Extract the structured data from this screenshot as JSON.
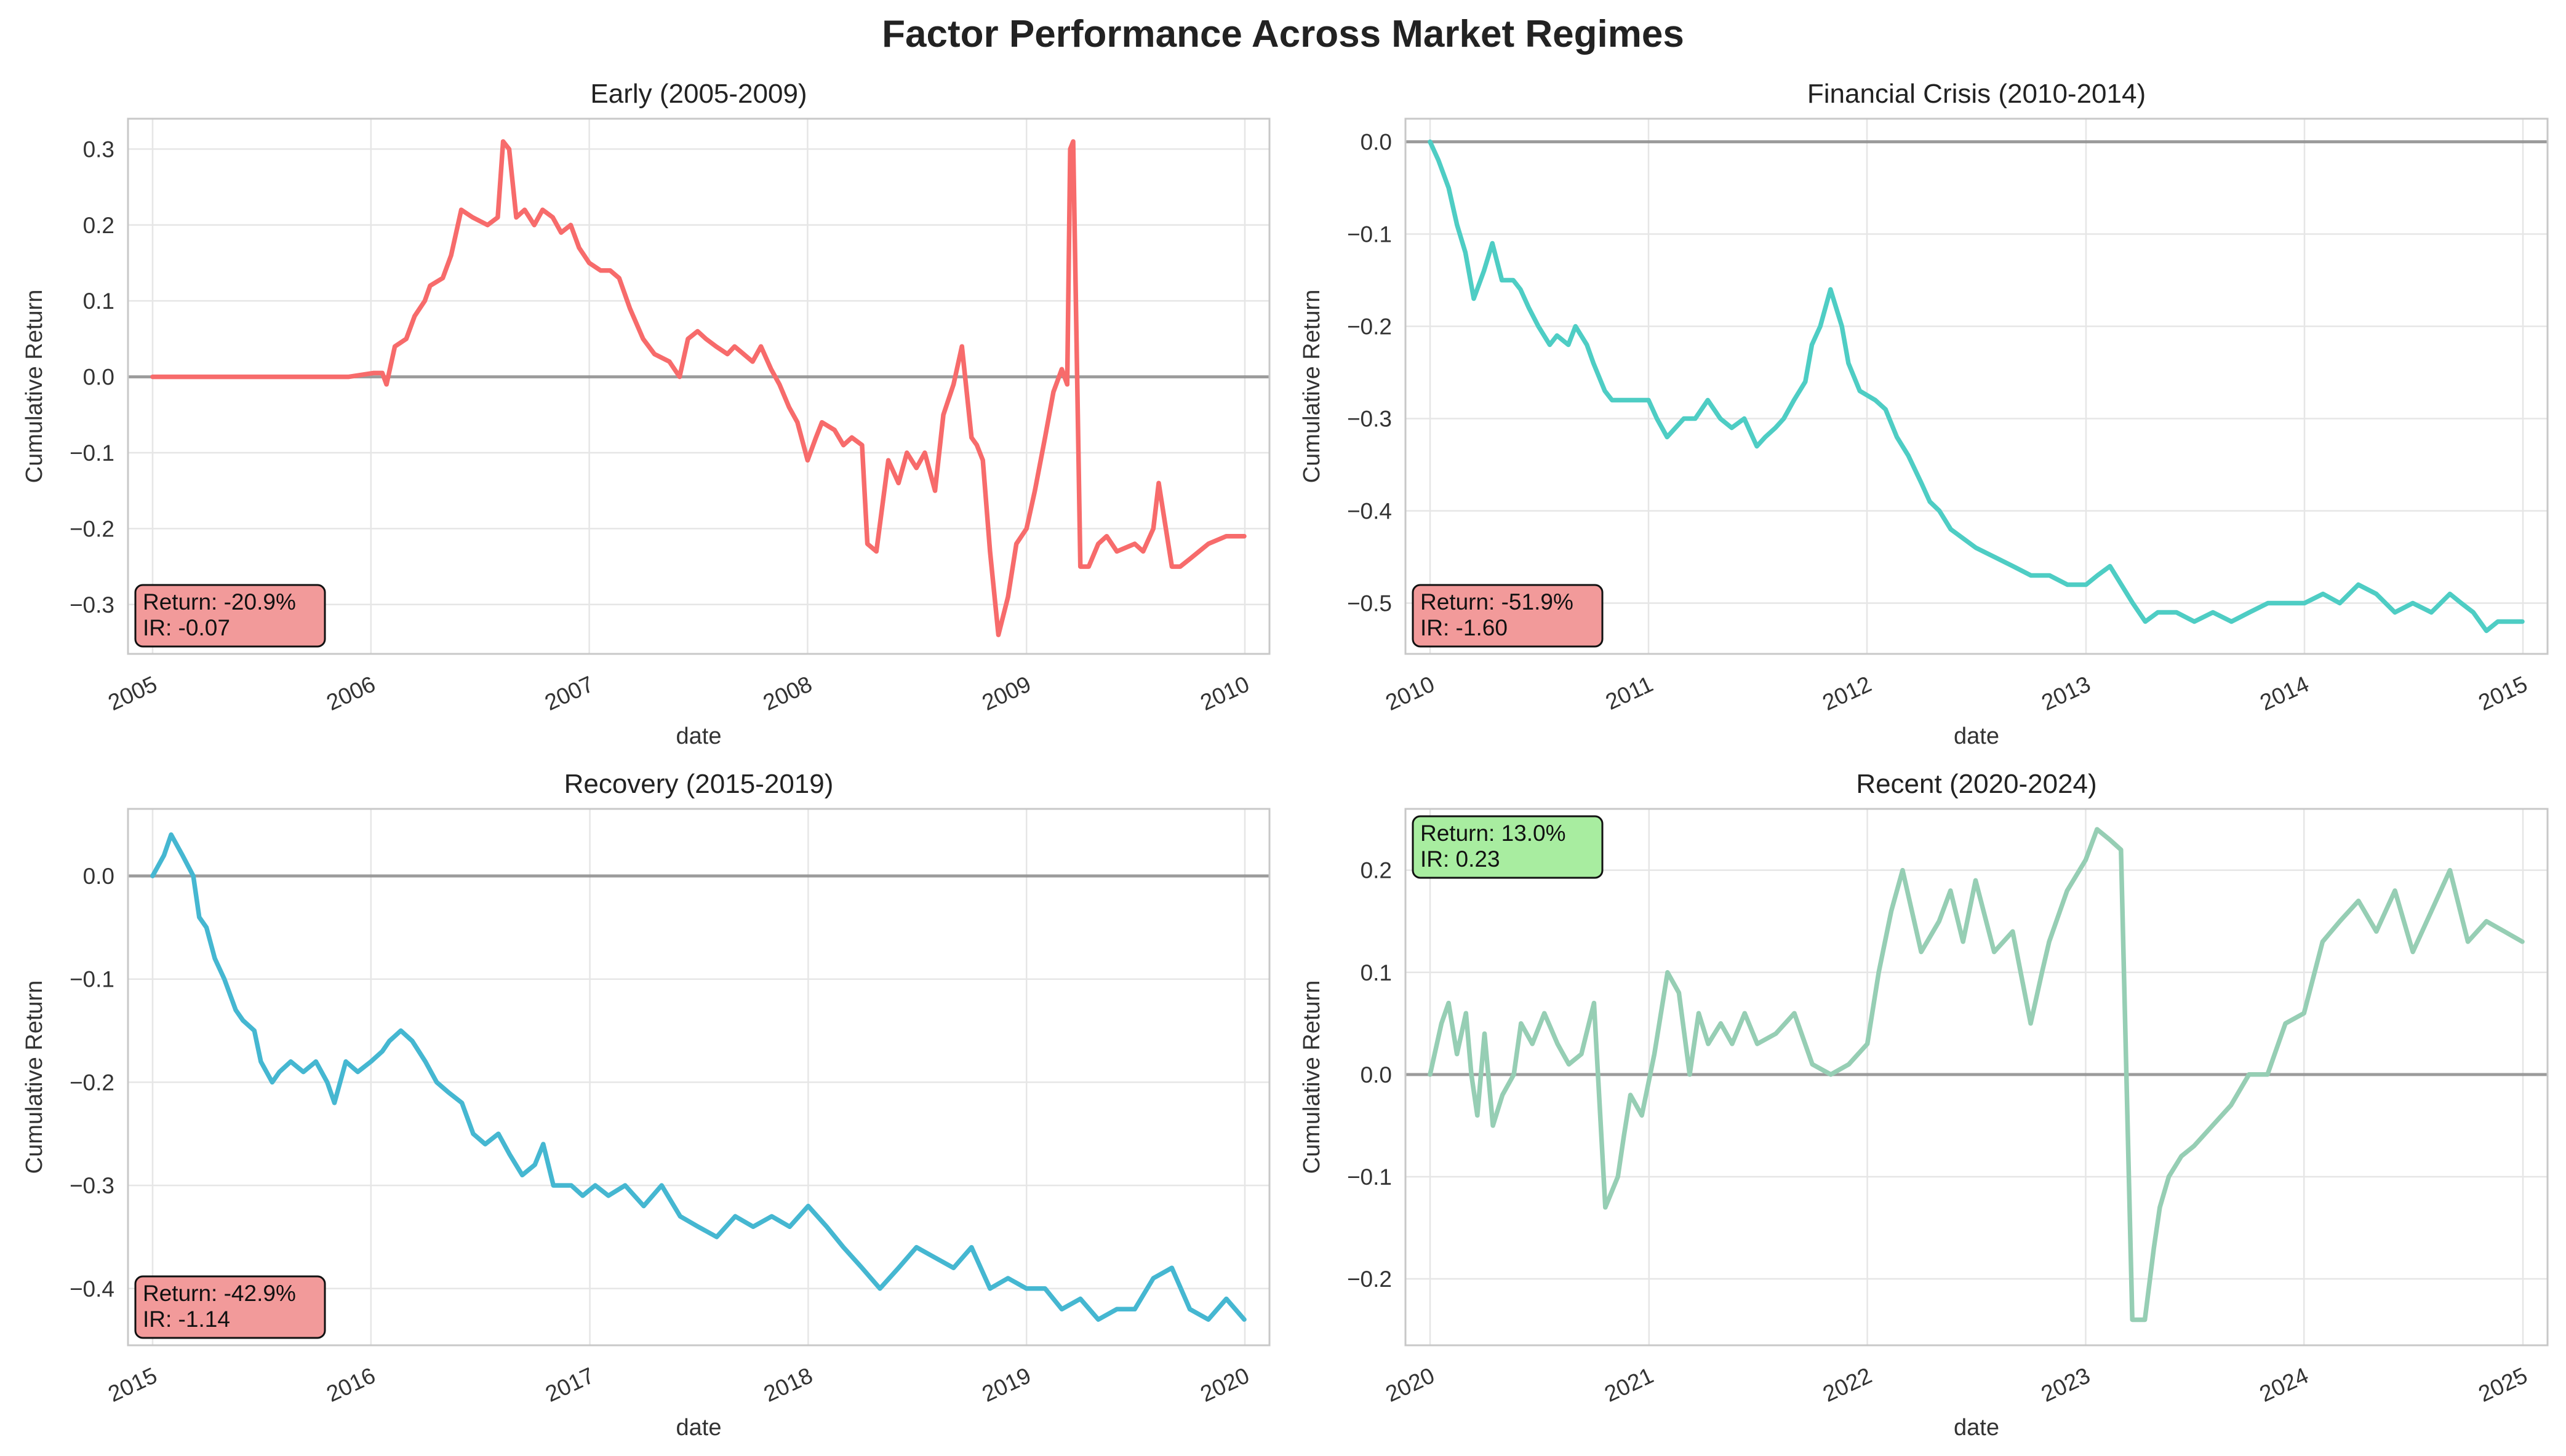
{
  "title": "Factor Performance Across Market Regimes",
  "chart_data": [
    {
      "type": "line",
      "title": "Early (2005-2009)",
      "xlabel": "date",
      "ylabel": "Cumulative Return",
      "xlim": [
        "2005-01-01",
        "2010-01-01"
      ],
      "xticks": [
        "2005",
        "2006",
        "2007",
        "2008",
        "2009",
        "2010"
      ],
      "ylim": [
        -0.365,
        0.34
      ],
      "yticks": [
        0.3,
        0.2,
        0.1,
        0.0,
        -0.1,
        -0.2,
        -0.3
      ],
      "ytick_labels": [
        "0.3",
        "0.2",
        "0.1",
        "0.0",
        "−0.1",
        "−0.2",
        "−0.3"
      ],
      "color": "#f76b6b",
      "grid": true,
      "annotation": {
        "return_text": "Return: -20.9%",
        "ir_text": "IR: -0.07",
        "position": "bottom-left",
        "box_color": "#f29a9a"
      },
      "series": [
        {
          "x": [
            "2005-01-01",
            "2005-11-25",
            "2006-01-05",
            "2006-01-20",
            "2006-01-27",
            "2006-02-10",
            "2006-03-01",
            "2006-03-15",
            "2006-04-01",
            "2006-04-10",
            "2006-05-01",
            "2006-05-15",
            "2006-06-01",
            "2006-06-20",
            "2006-07-15",
            "2006-08-01",
            "2006-08-10",
            "2006-08-20",
            "2006-09-01",
            "2006-09-15",
            "2006-10-01",
            "2006-10-15",
            "2006-11-01",
            "2006-11-15",
            "2006-12-01",
            "2006-12-15",
            "2007-01-01",
            "2007-01-20",
            "2007-02-05",
            "2007-02-20",
            "2007-03-10",
            "2007-04-01",
            "2007-04-20",
            "2007-05-15",
            "2007-06-01",
            "2007-06-15",
            "2007-07-01",
            "2007-07-15",
            "2007-08-01",
            "2007-08-20",
            "2007-09-01",
            "2007-10-01",
            "2007-10-15",
            "2007-11-01",
            "2007-11-15",
            "2007-12-01",
            "2007-12-15",
            "2008-01-01",
            "2008-01-15",
            "2008-01-25",
            "2008-02-15",
            "2008-03-01",
            "2008-03-15",
            "2008-04-01",
            "2008-04-10",
            "2008-04-25",
            "2008-05-15",
            "2008-06-01",
            "2008-06-15",
            "2008-07-01",
            "2008-07-15",
            "2008-08-01",
            "2008-08-15",
            "2008-09-01",
            "2008-09-15",
            "2008-10-01",
            "2008-10-10",
            "2008-10-20",
            "2008-11-01",
            "2008-11-15",
            "2008-12-01",
            "2008-12-15",
            "2009-01-01",
            "2009-01-15",
            "2009-02-01",
            "2009-02-15",
            "2009-03-01",
            "2009-03-10",
            "2009-03-15",
            "2009-03-20",
            "2009-04-01",
            "2009-04-15",
            "2009-05-01",
            "2009-05-15",
            "2009-06-01",
            "2009-07-01",
            "2009-07-15",
            "2009-08-01",
            "2009-08-10",
            "2009-08-20",
            "2009-09-01",
            "2009-09-15",
            "2009-10-01",
            "2009-11-01",
            "2009-12-01",
            "2009-12-31"
          ],
          "values": [
            0.0,
            0.0,
            0.005,
            0.005,
            -0.01,
            0.04,
            0.05,
            0.08,
            0.1,
            0.12,
            0.13,
            0.16,
            0.22,
            0.21,
            0.2,
            0.21,
            0.31,
            0.3,
            0.21,
            0.22,
            0.2,
            0.22,
            0.21,
            0.19,
            0.2,
            0.17,
            0.15,
            0.14,
            0.14,
            0.13,
            0.09,
            0.05,
            0.03,
            0.02,
            0.0,
            0.05,
            0.06,
            0.05,
            0.04,
            0.03,
            0.04,
            0.02,
            0.04,
            0.01,
            -0.01,
            -0.04,
            -0.06,
            -0.11,
            -0.08,
            -0.06,
            -0.07,
            -0.09,
            -0.08,
            -0.09,
            -0.22,
            -0.23,
            -0.11,
            -0.14,
            -0.1,
            -0.12,
            -0.1,
            -0.15,
            -0.05,
            -0.01,
            0.04,
            -0.08,
            -0.09,
            -0.11,
            -0.23,
            -0.34,
            -0.29,
            -0.22,
            -0.2,
            -0.15,
            -0.08,
            -0.02,
            0.01,
            -0.01,
            0.3,
            0.31,
            -0.25,
            -0.25,
            -0.22,
            -0.21,
            -0.23,
            -0.22,
            -0.23,
            -0.2,
            -0.14,
            -0.19,
            -0.25,
            -0.25,
            -0.24,
            -0.22,
            -0.21,
            -0.21
          ]
        }
      ]
    },
    {
      "type": "line",
      "title": "Financial Crisis (2010-2014)",
      "xlabel": "date",
      "ylabel": "Cumulative Return",
      "xlim": [
        "2010-01-01",
        "2015-01-01"
      ],
      "xticks": [
        "2010",
        "2011",
        "2012",
        "2013",
        "2014",
        "2015"
      ],
      "ylim": [
        -0.555,
        0.025
      ],
      "yticks": [
        0.0,
        -0.1,
        -0.2,
        -0.3,
        -0.4,
        -0.5
      ],
      "ytick_labels": [
        "0.0",
        "−0.1",
        "−0.2",
        "−0.3",
        "−0.4",
        "−0.5"
      ],
      "color": "#4ecdc4",
      "grid": true,
      "annotation": {
        "return_text": "Return: -51.9%",
        "ir_text": "IR: -1.60",
        "position": "bottom-left",
        "box_color": "#f29a9a"
      },
      "series": [
        {
          "x": [
            "2010-01-01",
            "2010-01-15",
            "2010-02-01",
            "2010-02-15",
            "2010-03-01",
            "2010-03-15",
            "2010-04-01",
            "2010-04-15",
            "2010-05-01",
            "2010-05-20",
            "2010-06-01",
            "2010-06-15",
            "2010-07-01",
            "2010-07-20",
            "2010-08-01",
            "2010-08-20",
            "2010-09-01",
            "2010-09-20",
            "2010-10-01",
            "2010-10-20",
            "2010-11-01",
            "2010-12-01",
            "2011-01-01",
            "2011-01-15",
            "2011-02-01",
            "2011-02-15",
            "2011-03-01",
            "2011-03-20",
            "2011-04-10",
            "2011-05-01",
            "2011-05-20",
            "2011-06-10",
            "2011-07-01",
            "2011-07-15",
            "2011-08-01",
            "2011-08-15",
            "2011-09-01",
            "2011-09-20",
            "2011-10-01",
            "2011-10-15",
            "2011-11-01",
            "2011-11-20",
            "2011-12-01",
            "2011-12-20",
            "2012-01-15",
            "2012-02-01",
            "2012-02-20",
            "2012-03-10",
            "2012-04-01",
            "2012-04-15",
            "2012-05-01",
            "2012-05-20",
            "2012-06-10",
            "2012-07-01",
            "2012-08-01",
            "2012-09-01",
            "2012-10-01",
            "2012-11-01",
            "2012-12-01",
            "2013-01-01",
            "2013-01-20",
            "2013-02-10",
            "2013-03-01",
            "2013-03-20",
            "2013-04-10",
            "2013-05-01",
            "2013-06-01",
            "2013-07-01",
            "2013-08-01",
            "2013-09-01",
            "2013-10-01",
            "2013-11-01",
            "2013-12-01",
            "2014-01-01",
            "2014-02-01",
            "2014-03-01",
            "2014-04-01",
            "2014-05-01",
            "2014-06-01",
            "2014-07-01",
            "2014-08-01",
            "2014-09-01",
            "2014-09-20",
            "2014-10-10",
            "2014-11-01",
            "2014-11-20",
            "2014-12-10",
            "2014-12-31"
          ],
          "values": [
            0.0,
            -0.02,
            -0.05,
            -0.09,
            -0.12,
            -0.17,
            -0.14,
            -0.11,
            -0.15,
            -0.15,
            -0.16,
            -0.18,
            -0.2,
            -0.22,
            -0.21,
            -0.22,
            -0.2,
            -0.22,
            -0.24,
            -0.27,
            -0.28,
            -0.28,
            -0.28,
            -0.3,
            -0.32,
            -0.31,
            -0.3,
            -0.3,
            -0.28,
            -0.3,
            -0.31,
            -0.3,
            -0.33,
            -0.32,
            -0.31,
            -0.3,
            -0.28,
            -0.26,
            -0.22,
            -0.2,
            -0.16,
            -0.2,
            -0.24,
            -0.27,
            -0.28,
            -0.29,
            -0.32,
            -0.34,
            -0.37,
            -0.39,
            -0.4,
            -0.42,
            -0.43,
            -0.44,
            -0.45,
            -0.46,
            -0.47,
            -0.47,
            -0.48,
            -0.48,
            -0.47,
            -0.46,
            -0.48,
            -0.5,
            -0.52,
            -0.51,
            -0.51,
            -0.52,
            -0.51,
            -0.52,
            -0.51,
            -0.5,
            -0.5,
            -0.5,
            -0.49,
            -0.5,
            -0.48,
            -0.49,
            -0.51,
            -0.5,
            -0.51,
            -0.49,
            -0.5,
            -0.51,
            -0.53,
            -0.52,
            -0.52,
            -0.52
          ]
        }
      ]
    },
    {
      "type": "line",
      "title": "Recovery (2015-2019)",
      "xlabel": "date",
      "ylabel": "Cumulative Return",
      "xlim": [
        "2015-01-01",
        "2020-01-01"
      ],
      "xticks": [
        "2015",
        "2016",
        "2017",
        "2018",
        "2019",
        "2020"
      ],
      "ylim": [
        -0.455,
        0.065
      ],
      "yticks": [
        0.0,
        -0.1,
        -0.2,
        -0.3,
        -0.4
      ],
      "ytick_labels": [
        "0.0",
        "−0.1",
        "−0.2",
        "−0.3",
        "−0.4"
      ],
      "color": "#45b7d1",
      "grid": true,
      "annotation": {
        "return_text": "Return: -42.9%",
        "ir_text": "IR: -1.14",
        "position": "bottom-left",
        "box_color": "#f29a9a"
      },
      "series": [
        {
          "x": [
            "2015-01-01",
            "2015-01-20",
            "2015-02-01",
            "2015-02-20",
            "2015-03-10",
            "2015-03-20",
            "2015-04-01",
            "2015-04-15",
            "2015-05-01",
            "2015-05-20",
            "2015-06-01",
            "2015-06-20",
            "2015-07-01",
            "2015-07-20",
            "2015-08-01",
            "2015-08-20",
            "2015-09-10",
            "2015-10-01",
            "2015-10-20",
            "2015-11-01",
            "2015-11-20",
            "2015-12-10",
            "2016-01-01",
            "2016-01-20",
            "2016-02-01",
            "2016-02-20",
            "2016-03-10",
            "2016-04-01",
            "2016-04-20",
            "2016-05-10",
            "2016-06-01",
            "2016-06-20",
            "2016-07-10",
            "2016-08-01",
            "2016-08-20",
            "2016-09-10",
            "2016-10-01",
            "2016-10-15",
            "2016-11-01",
            "2016-12-01",
            "2016-12-20",
            "2017-01-10",
            "2017-02-01",
            "2017-03-01",
            "2017-04-01",
            "2017-05-01",
            "2017-06-01",
            "2017-07-01",
            "2017-08-01",
            "2017-09-01",
            "2017-10-01",
            "2017-11-01",
            "2017-12-01",
            "2018-01-01",
            "2018-02-01",
            "2018-03-01",
            "2018-04-01",
            "2018-05-01",
            "2018-06-01",
            "2018-07-01",
            "2018-08-01",
            "2018-09-01",
            "2018-10-01",
            "2018-11-01",
            "2018-12-01",
            "2019-01-01",
            "2019-02-01",
            "2019-03-01",
            "2019-04-01",
            "2019-05-01",
            "2019-06-01",
            "2019-07-01",
            "2019-08-01",
            "2019-09-01",
            "2019-10-01",
            "2019-11-01",
            "2019-12-01",
            "2019-12-31"
          ],
          "values": [
            0.0,
            0.02,
            0.04,
            0.02,
            0.0,
            -0.04,
            -0.05,
            -0.08,
            -0.1,
            -0.13,
            -0.14,
            -0.15,
            -0.18,
            -0.2,
            -0.19,
            -0.18,
            -0.19,
            -0.18,
            -0.2,
            -0.22,
            -0.18,
            -0.19,
            -0.18,
            -0.17,
            -0.16,
            -0.15,
            -0.16,
            -0.18,
            -0.2,
            -0.21,
            -0.22,
            -0.25,
            -0.26,
            -0.25,
            -0.27,
            -0.29,
            -0.28,
            -0.26,
            -0.3,
            -0.3,
            -0.31,
            -0.3,
            -0.31,
            -0.3,
            -0.32,
            -0.3,
            -0.33,
            -0.34,
            -0.35,
            -0.33,
            -0.34,
            -0.33,
            -0.34,
            -0.32,
            -0.34,
            -0.36,
            -0.38,
            -0.4,
            -0.38,
            -0.36,
            -0.37,
            -0.38,
            -0.36,
            -0.4,
            -0.39,
            -0.4,
            -0.4,
            -0.42,
            -0.41,
            -0.43,
            -0.42,
            -0.42,
            -0.39,
            -0.38,
            -0.42,
            -0.43,
            -0.41,
            -0.43
          ]
        }
      ]
    },
    {
      "type": "line",
      "title": "Recent (2020-2024)",
      "xlabel": "date",
      "ylabel": "Cumulative Return",
      "xlim": [
        "2020-01-01",
        "2025-01-01"
      ],
      "xticks": [
        "2020",
        "2021",
        "2022",
        "2023",
        "2024",
        "2025"
      ],
      "ylim": [
        -0.265,
        0.26
      ],
      "yticks": [
        0.2,
        0.1,
        0.0,
        -0.1,
        -0.2
      ],
      "ytick_labels": [
        "0.2",
        "0.1",
        "0.0",
        "−0.1",
        "−0.2"
      ],
      "color": "#96ceb4",
      "grid": true,
      "annotation": {
        "return_text": "Return: 13.0%",
        "ir_text": "IR: 0.23",
        "position": "top-left",
        "box_color": "#a8eda0"
      },
      "series": [
        {
          "x": [
            "2020-01-01",
            "2020-01-20",
            "2020-02-01",
            "2020-02-15",
            "2020-03-01",
            "2020-03-10",
            "2020-03-20",
            "2020-04-01",
            "2020-04-15",
            "2020-05-01",
            "2020-05-20",
            "2020-06-01",
            "2020-06-20",
            "2020-07-10",
            "2020-08-01",
            "2020-08-20",
            "2020-09-10",
            "2020-10-01",
            "2020-10-20",
            "2020-11-10",
            "2020-11-20",
            "2020-12-01",
            "2020-12-20",
            "2021-01-10",
            "2021-02-01",
            "2021-02-20",
            "2021-03-10",
            "2021-03-25",
            "2021-04-10",
            "2021-05-01",
            "2021-05-20",
            "2021-06-10",
            "2021-07-01",
            "2021-08-01",
            "2021-09-01",
            "2021-10-01",
            "2021-11-01",
            "2021-12-01",
            "2022-01-01",
            "2022-01-20",
            "2022-02-10",
            "2022-03-01",
            "2022-04-01",
            "2022-05-01",
            "2022-05-20",
            "2022-06-10",
            "2022-07-01",
            "2022-08-01",
            "2022-09-01",
            "2022-10-01",
            "2022-10-20",
            "2022-11-01",
            "2022-12-01",
            "2023-01-01",
            "2023-01-20",
            "2023-02-10",
            "2023-03-01",
            "2023-03-20",
            "2023-04-10",
            "2023-04-25",
            "2023-05-05",
            "2023-05-20",
            "2023-06-10",
            "2023-07-01",
            "2023-08-01",
            "2023-09-01",
            "2023-10-01",
            "2023-11-01",
            "2023-12-01",
            "2024-01-01",
            "2024-02-01",
            "2024-03-01",
            "2024-04-01",
            "2024-05-01",
            "2024-06-01",
            "2024-07-01",
            "2024-08-01",
            "2024-09-01",
            "2024-10-01",
            "2024-11-01",
            "2024-12-01",
            "2024-12-31"
          ],
          "values": [
            0.0,
            0.05,
            0.07,
            0.02,
            0.06,
            0.0,
            -0.04,
            0.04,
            -0.05,
            -0.02,
            0.0,
            0.05,
            0.03,
            0.06,
            0.03,
            0.01,
            0.02,
            0.07,
            -0.13,
            -0.1,
            -0.06,
            -0.02,
            -0.04,
            0.02,
            0.1,
            0.08,
            0.0,
            0.06,
            0.03,
            0.05,
            0.03,
            0.06,
            0.03,
            0.04,
            0.06,
            0.01,
            0.0,
            0.01,
            0.03,
            0.1,
            0.16,
            0.2,
            0.12,
            0.15,
            0.18,
            0.13,
            0.19,
            0.12,
            0.14,
            0.05,
            0.1,
            0.13,
            0.18,
            0.21,
            0.24,
            0.23,
            0.22,
            -0.24,
            -0.24,
            -0.17,
            -0.13,
            -0.1,
            -0.08,
            -0.07,
            -0.05,
            -0.03,
            0.0,
            0.0,
            0.05,
            0.06,
            0.13,
            0.15,
            0.17,
            0.14,
            0.18,
            0.12,
            0.16,
            0.2,
            0.13,
            0.15,
            0.14,
            0.13
          ]
        }
      ]
    }
  ]
}
